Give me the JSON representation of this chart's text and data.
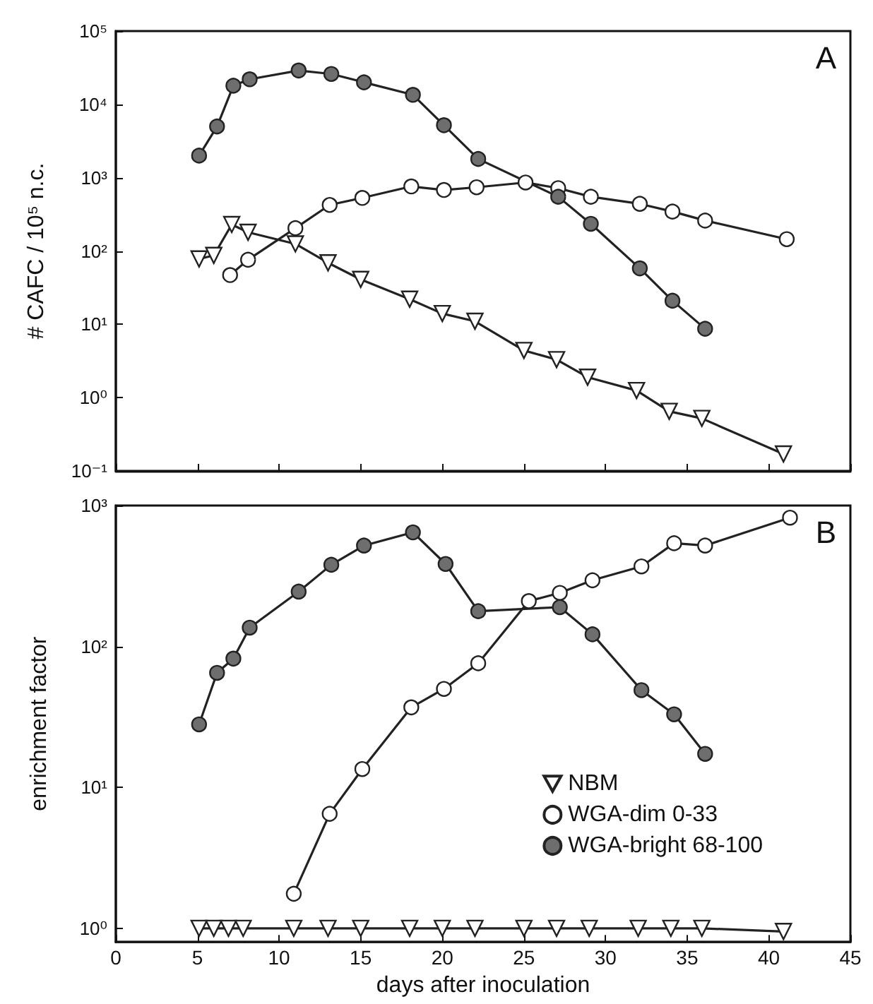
{
  "chart_data": [
    {
      "type": "line",
      "ylabel": "# CAFC / 10⁵ n.c.",
      "annotations": [
        "A"
      ],
      "log": "y",
      "grid": false,
      "legend": false,
      "tick_labels": "y",
      "xlim": [
        0,
        45
      ],
      "xticks": [
        0,
        5,
        10,
        15,
        20,
        25,
        30,
        35,
        40,
        45
      ],
      "ylim": [
        0.1,
        100000
      ],
      "yticks": [
        {
          "value": 0.1,
          "label": "10⁻¹"
        },
        {
          "value": 1,
          "label": "10⁰"
        },
        {
          "value": 10,
          "label": "10¹"
        },
        {
          "value": 100,
          "label": "10²"
        },
        {
          "value": 1000,
          "label": "10³"
        },
        {
          "value": 10000,
          "label": "10⁴"
        },
        {
          "value": 100000,
          "label": "10⁵"
        }
      ],
      "series": [
        {
          "color": "#222222",
          "colors": [
            "#ffffff",
            "#ffffff",
            "#ffffff",
            "#ffffff",
            "#ffffff",
            "#ffffff",
            "#ffffff",
            "#ffffff",
            "#ffffff",
            "#ffffff",
            "#ffffff",
            "#ffffff",
            "#ffffff",
            "#ffffff",
            "#ffffff",
            "#ffffff",
            "#ffffff"
          ],
          "marker": "triangle",
          "x": [
            5.1,
            6.0,
            7.1,
            8.1,
            11.0,
            13.0,
            15.0,
            18.0,
            20.0,
            22.0,
            25.0,
            27.0,
            28.9,
            31.9,
            33.9,
            35.9,
            40.9
          ],
          "values": [
            78,
            87,
            230,
            180,
            125,
            69,
            41,
            22,
            14,
            11,
            4.4,
            3.3,
            1.9,
            1.25,
            0.65,
            0.52,
            0.17
          ]
        },
        {
          "color": "#222222",
          "colors": [
            "#ffffff",
            "#ffffff",
            "#ffffff",
            "#ffffff",
            "#ffffff",
            "#ffffff",
            "#ffffff",
            "#ffffff",
            "#ffffff",
            "#ffffff",
            "#ffffff",
            "#ffffff",
            "#ffffff",
            "#ffffff",
            "#ffffff"
          ],
          "marker": "circle",
          "x": [
            7.0,
            8.1,
            11.0,
            13.1,
            15.1,
            18.1,
            20.1,
            22.1,
            25.1,
            27.1,
            29.1,
            32.1,
            34.1,
            36.1,
            41.1
          ],
          "values": [
            47,
            76,
            205,
            425,
            530,
            760,
            680,
            740,
            860,
            720,
            550,
            440,
            345,
            260,
            145
          ]
        },
        {
          "color": "#222222",
          "colors": [
            "#6e6e6e",
            "#6e6e6e",
            "#6e6e6e",
            "#6e6e6e",
            "#6e6e6e",
            "#6e6e6e",
            "#6e6e6e",
            "#6e6e6e",
            "#6e6e6e",
            "#6e6e6e",
            "#6e6e6e",
            "#6e6e6e",
            "#6e6e6e",
            "#6e6e6e",
            "#6e6e6e"
          ],
          "marker": "circle",
          "x": [
            5.1,
            6.2,
            7.2,
            8.2,
            11.2,
            13.2,
            15.2,
            18.2,
            20.1,
            22.2,
            27.1,
            29.1,
            32.1,
            34.1,
            36.1
          ],
          "values": [
            2000,
            5000,
            18000,
            22000,
            29000,
            26000,
            20000,
            13500,
            5200,
            1800,
            550,
            235,
            58,
            21,
            8.7
          ]
        }
      ]
    },
    {
      "type": "line",
      "xlabel": "days after inoculation",
      "ylabel": "enrichment factor",
      "annotations": [
        "B"
      ],
      "log": "y",
      "grid": false,
      "legend": "bottom right",
      "xlim": [
        0,
        45
      ],
      "xticks": [
        0,
        5,
        10,
        15,
        20,
        25,
        30,
        35,
        40,
        45
      ],
      "ylim": [
        0.8,
        1000
      ],
      "yticks": [
        {
          "value": 1,
          "label": "10⁰"
        },
        {
          "value": 10,
          "label": "10¹"
        },
        {
          "value": 100,
          "label": "10²"
        },
        {
          "value": 1000,
          "label": "10³"
        }
      ],
      "series": [
        {
          "name": "NBM",
          "color": "#222222",
          "colors": [
            "#ffffff",
            "#ffffff",
            "#ffffff",
            "#ffffff",
            "#ffffff",
            "#ffffff",
            "#ffffff",
            "#ffffff",
            "#ffffff",
            "#ffffff",
            "#ffffff",
            "#ffffff",
            "#ffffff",
            "#ffffff",
            "#ffffff",
            "#ffffff",
            "#ffffff"
          ],
          "marker": "triangle",
          "x": [
            5.1,
            6.0,
            6.9,
            7.8,
            10.9,
            13.0,
            15.0,
            18.0,
            20.0,
            22.0,
            25.0,
            27.0,
            29.0,
            32.0,
            34.0,
            35.9,
            40.9
          ],
          "values": [
            1,
            1,
            1,
            1,
            1,
            1,
            1,
            1,
            1,
            1,
            1,
            1,
            1,
            1,
            1,
            1,
            0.95
          ]
        },
        {
          "name": "WGA-dim 0-33",
          "color": "#222222",
          "colors": [
            "#ffffff",
            "#ffffff",
            "#ffffff",
            "#ffffff",
            "#ffffff",
            "#ffffff",
            "#ffffff",
            "#ffffff",
            "#ffffff",
            "#ffffff",
            "#ffffff",
            "#ffffff",
            "#ffffff"
          ],
          "marker": "circle",
          "x": [
            10.9,
            13.1,
            15.1,
            18.1,
            20.1,
            22.2,
            25.3,
            27.2,
            29.2,
            32.2,
            34.2,
            36.1,
            41.3
          ],
          "values": [
            1.76,
            6.5,
            13.5,
            37,
            50,
            76,
            210,
            240,
            295,
            370,
            540,
            520,
            820
          ]
        },
        {
          "name": "WGA-bright 68-100",
          "color": "#222222",
          "colors": [
            "#6e6e6e",
            "#6e6e6e",
            "#6e6e6e",
            "#6e6e6e",
            "#6e6e6e",
            "#6e6e6e",
            "#6e6e6e",
            "#6e6e6e",
            "#6e6e6e",
            "#6e6e6e",
            "#6e6e6e",
            "#6e6e6e",
            "#6e6e6e",
            "#6e6e6e",
            "#6e6e6e"
          ],
          "marker": "circle",
          "x": [
            5.1,
            6.2,
            7.2,
            8.2,
            11.2,
            13.2,
            15.2,
            18.2,
            20.2,
            22.2,
            27.2,
            29.2,
            32.2,
            34.2,
            36.1
          ],
          "values": [
            28,
            65,
            82,
            136,
            245,
            380,
            520,
            645,
            385,
            178,
            190,
            122,
            49,
            33,
            17.3
          ]
        }
      ]
    }
  ]
}
